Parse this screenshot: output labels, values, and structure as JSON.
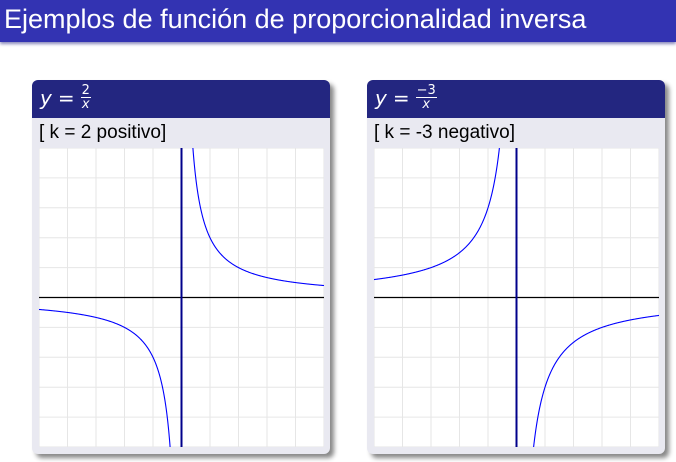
{
  "slide": {
    "title": "Ejemplos de función de proporcionalidad inversa"
  },
  "blocks": [
    {
      "var": "y",
      "eq": "=",
      "numerator": "2",
      "denominator": "x",
      "label": "[ k = 2 positivo]"
    },
    {
      "var": "y",
      "eq": "=",
      "numerator": "−3",
      "denominator": "x",
      "label": "[ k = -3 negativo]"
    }
  ],
  "colors": {
    "title_bar": "#3333b2",
    "block_header": "#232680",
    "block_body": "#e9e9f1",
    "curve": "#0000ff",
    "y_axis": "#00008b",
    "x_axis": "#000000",
    "grid": "#e6e6e6"
  },
  "chart_data": [
    {
      "type": "line",
      "function": "y = 2/x",
      "k": 2,
      "xlim": [
        -5,
        5
      ],
      "ylim": [
        -5,
        5
      ],
      "grid": true,
      "grid_step": 1
    },
    {
      "type": "line",
      "function": "y = -3/x",
      "k": -3,
      "xlim": [
        -5,
        5
      ],
      "ylim": [
        -5,
        5
      ],
      "grid": true,
      "grid_step": 1
    }
  ]
}
